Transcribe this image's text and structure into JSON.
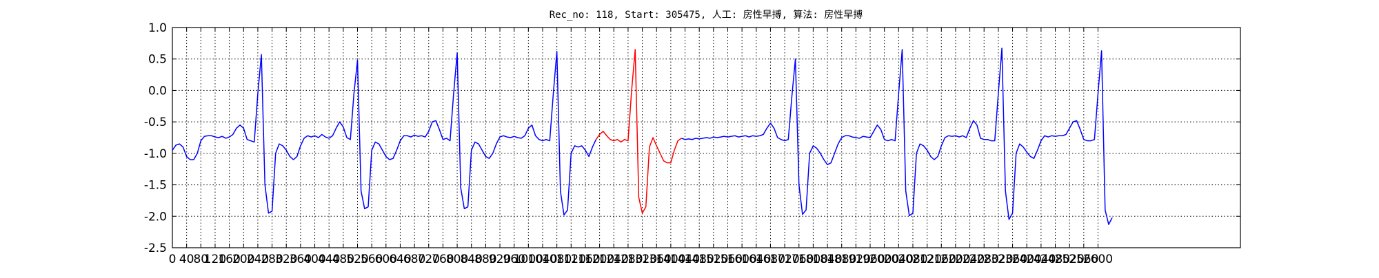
{
  "chart_data": {
    "type": "line",
    "title": "Rec_no: 118, Start: 305475, 人工: 房性早搏, 算法: 房性早搏",
    "xlim": [
      0,
      3000
    ],
    "ylim": [
      -2.5,
      1.0
    ],
    "yticks": [
      {
        "value": -2.5,
        "label": "-2.5"
      },
      {
        "value": -2,
        "label": "-2.0"
      },
      {
        "value": -1.5,
        "label": "-1.5"
      },
      {
        "value": -1,
        "label": "-1.0"
      },
      -0.5,
      {
        "value": 0,
        "label": "0.0"
      },
      0.5,
      {
        "value": 1,
        "label": "1.0"
      }
    ],
    "xticks": [
      0,
      40,
      80,
      120,
      160,
      200,
      240,
      280,
      320,
      360,
      400,
      440,
      480,
      520,
      560,
      600,
      640,
      680,
      720,
      760,
      800,
      840,
      880,
      920,
      960,
      1000,
      1040,
      1080,
      1120,
      1160,
      1200,
      1240,
      1280,
      1320,
      1360,
      1400,
      1440,
      1480,
      1520,
      1560,
      1600,
      1640,
      1680,
      1720,
      1760,
      1800,
      1840,
      1880,
      1920,
      1960,
      2000,
      2040,
      2080,
      2120,
      2160,
      2200,
      2240,
      2280,
      2320,
      2360,
      2400,
      2440,
      2480,
      2520,
      2560,
      2600
    ],
    "grid": true,
    "x": [
      0,
      10,
      20,
      30,
      40,
      50,
      60,
      70,
      80,
      90,
      100,
      110,
      120,
      130,
      140,
      150,
      160,
      170,
      180,
      190,
      200,
      210,
      220,
      230,
      240,
      250,
      260,
      270,
      280,
      290,
      300,
      310,
      320,
      330,
      340,
      350,
      360,
      370,
      380,
      390,
      400,
      410,
      420,
      430,
      440,
      450,
      460,
      470,
      480,
      490,
      500,
      510,
      520,
      530,
      540,
      550,
      560,
      570,
      580,
      590,
      600,
      610,
      620,
      630,
      640,
      650,
      660,
      670,
      680,
      690,
      700,
      710,
      720,
      730,
      740,
      750,
      760,
      770,
      780,
      790,
      800,
      810,
      820,
      830,
      840,
      850,
      860,
      870,
      880,
      890,
      900,
      910,
      920,
      930,
      940,
      950,
      960,
      970,
      980,
      990,
      1000,
      1010,
      1020,
      1030,
      1040,
      1050,
      1060,
      1070,
      1080,
      1090,
      1100,
      1110,
      1120,
      1130,
      1140,
      1150,
      1160,
      1170,
      1180,
      1190,
      1200,
      1210,
      1220,
      1230,
      1240,
      1250,
      1260,
      1270,
      1280,
      1290,
      1300,
      1310,
      1320,
      1330,
      1340,
      1350,
      1360,
      1370,
      1380,
      1390,
      1400,
      1410,
      1420,
      1430,
      1440,
      1450,
      1460,
      1470,
      1480,
      1490,
      1500,
      1510,
      1520,
      1530,
      1540,
      1550,
      1560,
      1570,
      1580,
      1590,
      1600,
      1610,
      1620,
      1630,
      1640,
      1650,
      1660,
      1670,
      1680,
      1690,
      1700,
      1710,
      1720,
      1730,
      1740,
      1750,
      1760,
      1770,
      1780,
      1790,
      1800,
      1810,
      1820,
      1830,
      1840,
      1850,
      1860,
      1870,
      1880,
      1890,
      1900,
      1910,
      1920,
      1930,
      1940,
      1950,
      1960,
      1970,
      1980,
      1990,
      2000,
      2010,
      2020,
      2030,
      2040,
      2050,
      2060,
      2070,
      2080,
      2090,
      2100,
      2110,
      2120,
      2130,
      2140,
      2150,
      2160,
      2170,
      2180,
      2190,
      2200,
      2210,
      2220,
      2230,
      2240,
      2250,
      2260,
      2270,
      2280,
      2290,
      2300,
      2310,
      2320,
      2330,
      2340,
      2350,
      2360,
      2370,
      2380,
      2390,
      2400,
      2410,
      2420,
      2430,
      2440,
      2450,
      2460,
      2470,
      2480,
      2490,
      2500,
      2510,
      2520,
      2530,
      2540,
      2550,
      2560,
      2570,
      2580,
      2590,
      2600,
      2610,
      2620,
      2630,
      2640
    ],
    "series": [
      {
        "color": "#0000ff",
        "values": [
          -0.95,
          -0.87,
          -0.85,
          -0.9,
          -1.05,
          -1.1,
          -1.1,
          -1.0,
          -0.8,
          -0.73,
          -0.72,
          -0.72,
          -0.74,
          -0.75,
          -0.73,
          -0.76,
          -0.74,
          -0.7,
          -0.6,
          -0.55,
          -0.6,
          -0.78,
          -0.8,
          -0.82,
          -0.05,
          0.57,
          -1.5,
          -1.95,
          -1.92,
          -1.0,
          -0.85,
          -0.88,
          -0.95,
          -1.05,
          -1.1,
          -1.05,
          -0.88,
          -0.76,
          -0.72,
          -0.74,
          -0.72,
          -0.75,
          -0.7,
          -0.74,
          -0.76,
          -0.72,
          -0.6,
          -0.5,
          -0.58,
          -0.75,
          -0.78,
          -0.05,
          0.48,
          -1.6,
          -1.88,
          -1.85,
          -0.95,
          -0.82,
          -0.85,
          -0.95,
          -1.05,
          -1.1,
          -1.08,
          -0.95,
          -0.8,
          -0.72,
          -0.72,
          -0.74,
          -0.71,
          -0.73,
          -0.72,
          -0.74,
          -0.65,
          -0.5,
          -0.48,
          -0.62,
          -0.78,
          -0.76,
          -0.8,
          -0.05,
          0.6,
          -1.55,
          -1.88,
          -1.85,
          -0.95,
          -0.82,
          -0.85,
          -0.95,
          -1.05,
          -1.08,
          -1.0,
          -0.85,
          -0.74,
          -0.72,
          -0.74,
          -0.75,
          -0.73,
          -0.75,
          -0.76,
          -0.72,
          -0.6,
          -0.55,
          -0.72,
          -0.78,
          -0.8,
          -0.78,
          -0.8,
          -0.05,
          0.62,
          -1.6,
          -1.98,
          -1.9,
          -1.0,
          -0.88,
          -0.9,
          -0.88,
          -0.95,
          -1.05,
          -0.9,
          -0.78,
          null,
          null,
          null,
          null,
          null,
          null,
          null,
          null,
          null,
          null,
          null,
          null,
          null,
          null,
          null,
          null,
          null,
          null,
          null,
          null,
          null,
          null,
          null,
          -0.76,
          -0.78,
          -0.77,
          -0.78,
          -0.76,
          -0.77,
          -0.76,
          -0.75,
          -0.76,
          -0.74,
          -0.75,
          -0.74,
          -0.73,
          -0.74,
          -0.73,
          -0.72,
          -0.74,
          -0.73,
          -0.72,
          -0.74,
          -0.72,
          -0.73,
          -0.72,
          -0.7,
          -0.6,
          -0.52,
          -0.6,
          -0.75,
          -0.78,
          -0.8,
          -0.78,
          -0.1,
          0.5,
          -1.5,
          -1.97,
          -1.9,
          -1.0,
          -0.88,
          -0.92,
          -1.0,
          -1.1,
          -1.18,
          -1.15,
          -1.0,
          -0.85,
          -0.75,
          -0.72,
          -0.72,
          -0.74,
          -0.75,
          -0.76,
          -0.73,
          -0.74,
          -0.75,
          -0.65,
          -0.55,
          -0.62,
          -0.78,
          -0.8,
          -0.78,
          -0.8,
          -0.05,
          0.65,
          -1.6,
          -1.99,
          -1.95,
          -1.0,
          -0.85,
          -0.88,
          -0.95,
          -1.05,
          -1.1,
          -1.05,
          -0.88,
          -0.75,
          -0.72,
          -0.73,
          -0.72,
          -0.74,
          -0.72,
          -0.75,
          -0.6,
          -0.48,
          -0.55,
          -0.76,
          -0.78,
          -0.78,
          -0.8,
          -0.8,
          -0.05,
          0.67,
          -1.6,
          -2.05,
          -1.95,
          -1.0,
          -0.85,
          -0.9,
          -0.98,
          -1.05,
          -1.08,
          -0.95,
          -0.8,
          -0.72,
          -0.74,
          -0.72,
          -0.73,
          -0.72,
          -0.72,
          -0.7,
          -0.6,
          -0.5,
          -0.48,
          -0.62,
          -0.78,
          -0.8,
          -0.8,
          -0.78,
          -0.05,
          0.63,
          -1.9,
          -2.13,
          -2.02
        ]
      },
      {
        "color": "#ff0000",
        "x": [
          1190,
          1200,
          1210,
          1220,
          1230,
          1240,
          1250,
          1260,
          1270,
          1280,
          1290,
          1300,
          1310,
          1320,
          1330,
          1340,
          1350,
          1360,
          1370,
          1380,
          1390,
          1400,
          1410,
          1420,
          1430
        ],
        "values": [
          -0.78,
          -0.7,
          -0.65,
          -0.72,
          -0.78,
          -0.8,
          -0.78,
          -0.82,
          -0.78,
          -0.8,
          0.0,
          0.65,
          -1.7,
          -1.95,
          -1.85,
          -0.9,
          -0.75,
          -0.88,
          -1.0,
          -1.12,
          -1.15,
          -1.15,
          -0.95,
          -0.8,
          -0.76
        ]
      }
    ]
  }
}
